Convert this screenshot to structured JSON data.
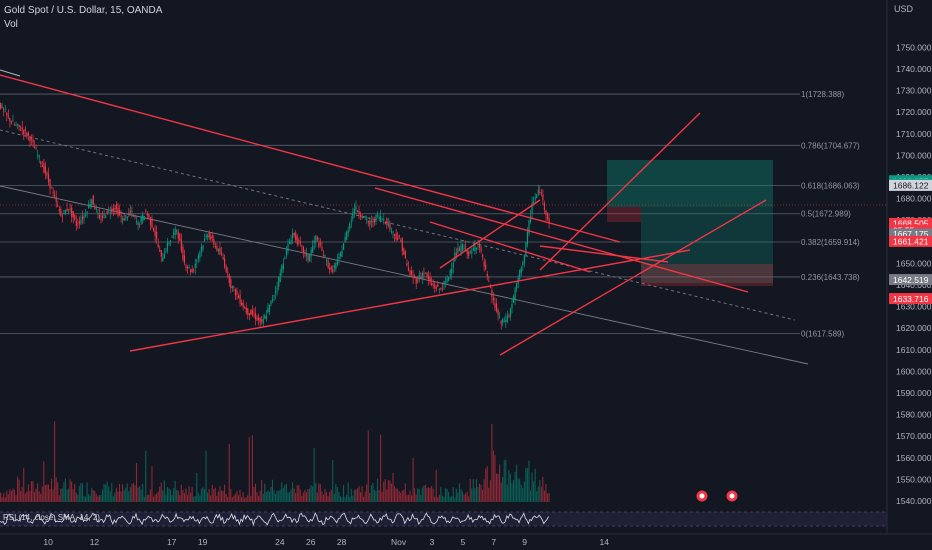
{
  "chart_data": {
    "type": "candlestick",
    "symbol_title": "Gold Spot / U.S. Dollar, 15, OANDA",
    "volume_label": "Vol",
    "currency": "USD",
    "rsi_label": "RSI (14, close, SMA, 14, 2)",
    "price_axis": {
      "ticks": [
        1540,
        1550,
        1560,
        1570,
        1580,
        1590,
        1600,
        1610,
        1620,
        1630,
        1640,
        1650,
        1660,
        1670,
        1680,
        1690,
        1700,
        1710,
        1720,
        1730,
        1740,
        1750
      ],
      "tick_labels": [
        "1540.000",
        "1550.000",
        "1560.000",
        "1570.000",
        "1580.000",
        "1590.000",
        "1600.000",
        "1610.000",
        "1620.000",
        "1630.000",
        "1640.000",
        "1650.000",
        "1660.000",
        "1670.000",
        "1680.000",
        "1690.000",
        "1700.000",
        "1710.000",
        "1720.000",
        "1730.000",
        "1740.000",
        "1750.000"
      ],
      "ylim": [
        1534,
        1756
      ]
    },
    "time_axis": {
      "labels": [
        "10",
        "12",
        "17",
        "19",
        "24",
        "26",
        "28",
        "Nov",
        "3",
        "5",
        "7",
        "9",
        "14"
      ],
      "values": [
        3,
        6,
        11,
        13,
        18,
        20,
        22,
        25.5,
        28,
        30,
        32,
        34,
        39
      ]
    },
    "fibonacci": [
      {
        "label": "1(1728.388)",
        "price": 1728.388
      },
      {
        "label": "0.786(1704.677)",
        "price": 1704.677
      },
      {
        "label": "0.618(1686.063)",
        "price": 1686.063
      },
      {
        "label": "0.5(1672.989)",
        "price": 1672.989
      },
      {
        "label": "0.382(1659.914)",
        "price": 1659.914
      },
      {
        "label": "0.236(1643.738)",
        "price": 1643.738
      },
      {
        "label": "0(1617.589)",
        "price": 1617.589
      }
    ],
    "price_tags": [
      {
        "text": "1688.277",
        "price": 1688.277,
        "color": "#089981"
      },
      {
        "text": "1686.864",
        "price": 1686.864,
        "color": "#089981"
      },
      {
        "text": "1686.122",
        "price": 1686.122,
        "color": "#d1d4dc"
      },
      {
        "text": "1668.505",
        "price": 1668.505,
        "color": "#f23645"
      },
      {
        "text": "05:55",
        "price": 1665.4,
        "color": "#f23645"
      },
      {
        "text": "1667.175",
        "price": 1663.6,
        "color": "#787b86"
      },
      {
        "text": "1661.421",
        "price": 1660.2,
        "color": "#f23645"
      },
      {
        "text": "1642.519",
        "price": 1642.519,
        "color": "#787b86"
      },
      {
        "text": "1633.716",
        "price": 1633.716,
        "color": "#f23645"
      }
    ],
    "price_path": [
      [
        0,
        1724
      ],
      [
        0.5,
        1718
      ],
      [
        1,
        1714
      ],
      [
        1.5,
        1712
      ],
      [
        2,
        1708
      ],
      [
        2.5,
        1700
      ],
      [
        3,
        1692
      ],
      [
        3.5,
        1682
      ],
      [
        4,
        1672
      ],
      [
        4.5,
        1676
      ],
      [
        5,
        1668
      ],
      [
        5.5,
        1672
      ],
      [
        6,
        1680
      ],
      [
        6.5,
        1670
      ],
      [
        7,
        1674
      ],
      [
        7.5,
        1676
      ],
      [
        8,
        1670
      ],
      [
        8.5,
        1674
      ],
      [
        9,
        1668
      ],
      [
        9.5,
        1674
      ],
      [
        10,
        1666
      ],
      [
        10.5,
        1652
      ],
      [
        11,
        1660
      ],
      [
        11.5,
        1666
      ],
      [
        12,
        1650
      ],
      [
        12.5,
        1646
      ],
      [
        13,
        1656
      ],
      [
        13.5,
        1664
      ],
      [
        14,
        1658
      ],
      [
        14.5,
        1652
      ],
      [
        15,
        1640
      ],
      [
        15.5,
        1634
      ],
      [
        16,
        1628
      ],
      [
        16.5,
        1626
      ],
      [
        17,
        1622
      ],
      [
        17.5,
        1630
      ],
      [
        18,
        1640
      ],
      [
        18.5,
        1654
      ],
      [
        19,
        1664
      ],
      [
        19.5,
        1658
      ],
      [
        20,
        1652
      ],
      [
        20.5,
        1662
      ],
      [
        21,
        1654
      ],
      [
        21.5,
        1646
      ],
      [
        22,
        1652
      ],
      [
        22.5,
        1664
      ],
      [
        23,
        1676
      ],
      [
        23.5,
        1672
      ],
      [
        24,
        1668
      ],
      [
        24.5,
        1672
      ],
      [
        25,
        1670
      ],
      [
        25.5,
        1664
      ],
      [
        26,
        1660
      ],
      [
        26.5,
        1646
      ],
      [
        27,
        1642
      ],
      [
        27.5,
        1646
      ],
      [
        28,
        1640
      ],
      [
        28.5,
        1638
      ],
      [
        29,
        1642
      ],
      [
        29.5,
        1654
      ],
      [
        30,
        1658
      ],
      [
        30.5,
        1654
      ],
      [
        31,
        1660
      ],
      [
        31.5,
        1646
      ],
      [
        32,
        1632
      ],
      [
        32.5,
        1622
      ],
      [
        33,
        1626
      ],
      [
        33.5,
        1640
      ],
      [
        34,
        1654
      ],
      [
        34.5,
        1678
      ],
      [
        35,
        1684
      ],
      [
        35.3,
        1676
      ],
      [
        35.6,
        1669
      ]
    ],
    "volume_path": [
      [
        0,
        9
      ],
      [
        2,
        13
      ],
      [
        3,
        18
      ],
      [
        5,
        12
      ],
      [
        6,
        14
      ],
      [
        8,
        11
      ],
      [
        10,
        12
      ],
      [
        11,
        15
      ],
      [
        12,
        10
      ],
      [
        14,
        12
      ],
      [
        16,
        9
      ],
      [
        17,
        14
      ],
      [
        19,
        13
      ],
      [
        20,
        12
      ],
      [
        22,
        11
      ],
      [
        24,
        13
      ],
      [
        25,
        16
      ],
      [
        26,
        15
      ],
      [
        28,
        10
      ],
      [
        29,
        9
      ],
      [
        30,
        13
      ],
      [
        31,
        16
      ],
      [
        32,
        34
      ],
      [
        33,
        30
      ],
      [
        34,
        21
      ],
      [
        35,
        20
      ],
      [
        35.6,
        8
      ]
    ],
    "rsi_band": [
      30,
      70
    ],
    "xlim": [
      0,
      45
    ]
  }
}
